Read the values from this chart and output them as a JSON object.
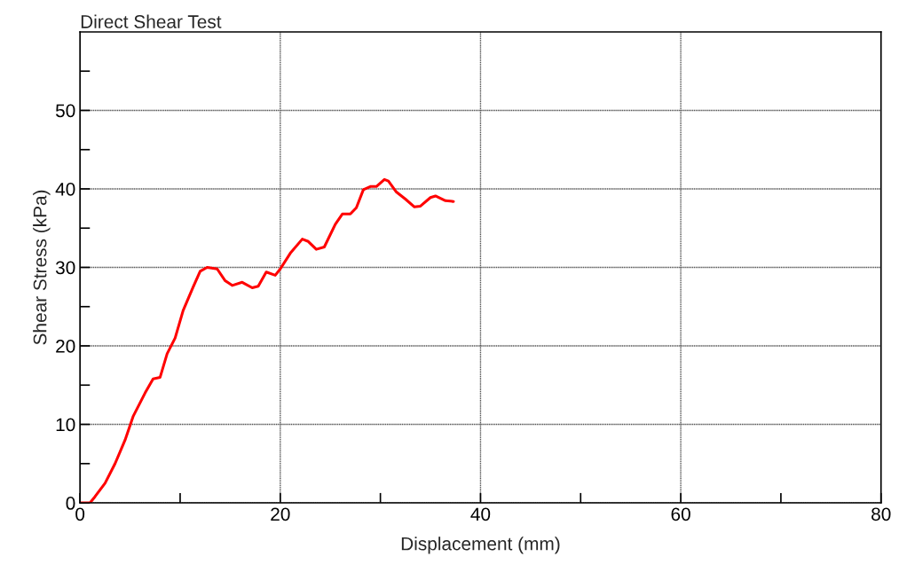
{
  "chart_data": {
    "type": "line",
    "title": "Direct Shear Test",
    "xlabel": "Displacement (mm)",
    "ylabel": "Shear Stress (kPa)",
    "xlim": [
      0,
      80
    ],
    "ylim": [
      0,
      60
    ],
    "xticks": [
      0,
      {
        "value": 10,
        "label": null
      },
      20,
      {
        "value": 30,
        "label": null
      },
      40,
      {
        "value": 50,
        "label": null
      },
      60,
      {
        "value": 70,
        "label": null
      },
      80
    ],
    "yticks": [
      0,
      {
        "value": 5,
        "label": null
      },
      10,
      {
        "value": 15,
        "label": null
      },
      20,
      {
        "value": 25,
        "label": null
      },
      30,
      {
        "value": 35,
        "label": null
      },
      40,
      {
        "value": 45,
        "label": null
      },
      50,
      {
        "value": 55,
        "label": null
      }
    ],
    "grid": true,
    "marker": "none",
    "line_style": "solid",
    "series": [
      {
        "color": "#ff0000",
        "x": [
          0,
          1,
          1.5,
          2.5,
          3.5,
          4.5,
          5.3,
          6.5,
          7.3,
          8,
          8.7,
          9.5,
          10.3,
          11.3,
          12,
          12.7,
          13.7,
          14.5,
          15.2,
          16.2,
          17.2,
          17.8,
          18.6,
          19.5,
          20,
          21,
          22.2,
          22.8,
          23.6,
          24.4,
          25.5,
          26.2,
          27,
          27.6,
          28.3,
          29,
          29.6,
          30.4,
          30.8,
          31.6,
          32.5,
          33.4,
          34,
          35,
          35.5,
          36.5,
          37.3
        ],
        "values": [
          0,
          0,
          0.8,
          2.5,
          5,
          8,
          11,
          14,
          15.8,
          16,
          19,
          21,
          24.5,
          27.5,
          29.5,
          30,
          29.8,
          28.3,
          27.7,
          28.1,
          27.4,
          27.6,
          29.4,
          29,
          29.8,
          31.8,
          33.6,
          33.3,
          32.3,
          32.6,
          35.5,
          36.8,
          36.8,
          37.6,
          39.9,
          40.3,
          40.3,
          41.2,
          41,
          39.6,
          38.7,
          37.7,
          37.8,
          38.9,
          39.1,
          38.5,
          38.4
        ]
      }
    ]
  }
}
